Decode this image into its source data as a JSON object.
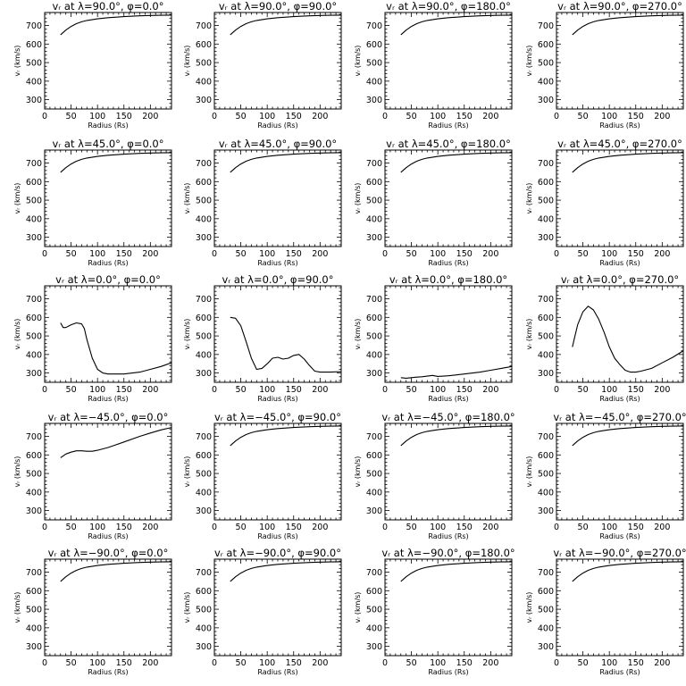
{
  "figure": {
    "background": "#ffffff",
    "line_color": "#000000"
  },
  "chart_data": [
    {
      "type": "line",
      "title": "vᵣ at λ=90.0°, φ=0.0°",
      "xlabel": "Radius (Rs)",
      "ylabel": "vᵣ (km/s)",
      "xlim": [
        0,
        240
      ],
      "ylim": [
        250,
        770
      ],
      "xticks": [
        0,
        50,
        100,
        150,
        200
      ],
      "yticks": [
        300,
        400,
        500,
        600,
        700
      ],
      "x": [
        30,
        40,
        50,
        60,
        70,
        80,
        100,
        120,
        150,
        180,
        200,
        220,
        240
      ],
      "y": [
        650,
        675,
        695,
        710,
        720,
        727,
        736,
        742,
        748,
        752,
        754,
        755,
        756
      ]
    },
    {
      "type": "line",
      "title": "vᵣ at λ=90.0°, φ=90.0°",
      "xlabel": "Radius (Rs)",
      "ylabel": "vᵣ (km/s)",
      "xlim": [
        0,
        240
      ],
      "ylim": [
        250,
        770
      ],
      "xticks": [
        0,
        50,
        100,
        150,
        200
      ],
      "yticks": [
        300,
        400,
        500,
        600,
        700
      ],
      "x": [
        30,
        40,
        50,
        60,
        70,
        80,
        100,
        120,
        150,
        180,
        200,
        220,
        240
      ],
      "y": [
        650,
        675,
        695,
        710,
        720,
        727,
        736,
        742,
        748,
        752,
        754,
        755,
        756
      ]
    },
    {
      "type": "line",
      "title": "vᵣ at λ=90.0°, φ=180.0°",
      "xlabel": "Radius (Rs)",
      "ylabel": "vᵣ (km/s)",
      "xlim": [
        0,
        240
      ],
      "ylim": [
        250,
        770
      ],
      "xticks": [
        0,
        50,
        100,
        150,
        200
      ],
      "yticks": [
        300,
        400,
        500,
        600,
        700
      ],
      "x": [
        30,
        40,
        50,
        60,
        70,
        80,
        100,
        120,
        150,
        180,
        200,
        220,
        240
      ],
      "y": [
        650,
        675,
        695,
        710,
        720,
        727,
        736,
        742,
        748,
        752,
        754,
        755,
        756
      ]
    },
    {
      "type": "line",
      "title": "vᵣ at λ=90.0°, φ=270.0°",
      "xlabel": "Radius (Rs)",
      "ylabel": "vᵣ (km/s)",
      "xlim": [
        0,
        240
      ],
      "ylim": [
        250,
        770
      ],
      "xticks": [
        0,
        50,
        100,
        150,
        200
      ],
      "yticks": [
        300,
        400,
        500,
        600,
        700
      ],
      "x": [
        30,
        40,
        50,
        60,
        70,
        80,
        100,
        120,
        150,
        180,
        200,
        220,
        240
      ],
      "y": [
        650,
        675,
        695,
        710,
        720,
        727,
        736,
        742,
        748,
        752,
        754,
        755,
        756
      ]
    },
    {
      "type": "line",
      "title": "vᵣ at λ=45.0°, φ=0.0°",
      "xlabel": "Radius (Rs)",
      "ylabel": "vᵣ (km/s)",
      "xlim": [
        0,
        240
      ],
      "ylim": [
        250,
        770
      ],
      "xticks": [
        0,
        50,
        100,
        150,
        200
      ],
      "yticks": [
        300,
        400,
        500,
        600,
        700
      ],
      "x": [
        30,
        40,
        50,
        60,
        70,
        80,
        100,
        120,
        150,
        180,
        200,
        220,
        240
      ],
      "y": [
        650,
        675,
        695,
        710,
        720,
        727,
        736,
        742,
        748,
        752,
        754,
        755,
        756
      ]
    },
    {
      "type": "line",
      "title": "vᵣ at λ=45.0°, φ=90.0°",
      "xlabel": "Radius (Rs)",
      "ylabel": "vᵣ (km/s)",
      "xlim": [
        0,
        240
      ],
      "ylim": [
        250,
        770
      ],
      "xticks": [
        0,
        50,
        100,
        150,
        200
      ],
      "yticks": [
        300,
        400,
        500,
        600,
        700
      ],
      "x": [
        30,
        40,
        50,
        60,
        70,
        80,
        100,
        120,
        150,
        180,
        200,
        220,
        240
      ],
      "y": [
        650,
        675,
        695,
        710,
        720,
        727,
        736,
        742,
        748,
        752,
        754,
        755,
        756
      ]
    },
    {
      "type": "line",
      "title": "vᵣ at λ=45.0°, φ=180.0°",
      "xlabel": "Radius (Rs)",
      "ylabel": "vᵣ (km/s)",
      "xlim": [
        0,
        240
      ],
      "ylim": [
        250,
        770
      ],
      "xticks": [
        0,
        50,
        100,
        150,
        200
      ],
      "yticks": [
        300,
        400,
        500,
        600,
        700
      ],
      "x": [
        30,
        40,
        50,
        60,
        70,
        80,
        100,
        120,
        150,
        180,
        200,
        220,
        240
      ],
      "y": [
        650,
        675,
        695,
        710,
        720,
        727,
        736,
        742,
        748,
        752,
        754,
        755,
        756
      ]
    },
    {
      "type": "line",
      "title": "vᵣ at λ=45.0°, φ=270.0°",
      "xlabel": "Radius (Rs)",
      "ylabel": "vᵣ (km/s)",
      "xlim": [
        0,
        240
      ],
      "ylim": [
        250,
        770
      ],
      "xticks": [
        0,
        50,
        100,
        150,
        200
      ],
      "yticks": [
        300,
        400,
        500,
        600,
        700
      ],
      "x": [
        30,
        40,
        50,
        60,
        70,
        80,
        100,
        120,
        150,
        180,
        200,
        220,
        240
      ],
      "y": [
        650,
        675,
        695,
        710,
        720,
        727,
        736,
        742,
        748,
        752,
        754,
        755,
        756
      ]
    },
    {
      "type": "line",
      "title": "vᵣ at λ=0.0°, φ=0.0°",
      "xlabel": "Radius (Rs)",
      "ylabel": "vᵣ (km/s)",
      "xlim": [
        0,
        240
      ],
      "ylim": [
        250,
        770
      ],
      "xticks": [
        0,
        50,
        100,
        150,
        200
      ],
      "yticks": [
        300,
        400,
        500,
        600,
        700
      ],
      "x": [
        30,
        35,
        40,
        50,
        60,
        70,
        75,
        80,
        90,
        100,
        110,
        120,
        150,
        180,
        200,
        220,
        240
      ],
      "y": [
        570,
        545,
        545,
        560,
        570,
        565,
        540,
        480,
        380,
        320,
        300,
        295,
        295,
        305,
        320,
        335,
        355
      ]
    },
    {
      "type": "line",
      "title": "vᵣ at λ=0.0°, φ=90.0°",
      "xlabel": "Radius (Rs)",
      "ylabel": "vᵣ (km/s)",
      "xlim": [
        0,
        240
      ],
      "ylim": [
        250,
        770
      ],
      "xticks": [
        0,
        50,
        100,
        150,
        200
      ],
      "yticks": [
        300,
        400,
        500,
        600,
        700
      ],
      "x": [
        30,
        40,
        50,
        60,
        70,
        80,
        90,
        100,
        110,
        120,
        130,
        140,
        150,
        160,
        170,
        180,
        190,
        200,
        220,
        240
      ],
      "y": [
        600,
        595,
        555,
        470,
        380,
        320,
        325,
        350,
        380,
        385,
        375,
        380,
        395,
        400,
        375,
        340,
        310,
        305,
        305,
        308
      ]
    },
    {
      "type": "line",
      "title": "vᵣ at λ=0.0°, φ=180.0°",
      "xlabel": "Radius (Rs)",
      "ylabel": "vᵣ (km/s)",
      "xlim": [
        0,
        240
      ],
      "ylim": [
        250,
        770
      ],
      "xticks": [
        0,
        50,
        100,
        150,
        200
      ],
      "yticks": [
        300,
        400,
        500,
        600,
        700
      ],
      "x": [
        30,
        40,
        50,
        60,
        70,
        80,
        90,
        100,
        110,
        120,
        150,
        180,
        200,
        220,
        240
      ],
      "y": [
        275,
        272,
        275,
        278,
        280,
        283,
        287,
        282,
        283,
        285,
        295,
        305,
        315,
        325,
        335
      ]
    },
    {
      "type": "line",
      "title": "vᵣ at λ=0.0°, φ=270.0°",
      "xlabel": "Radius (Rs)",
      "ylabel": "vᵣ (km/s)",
      "xlim": [
        0,
        240
      ],
      "ylim": [
        250,
        770
      ],
      "xticks": [
        0,
        50,
        100,
        150,
        200
      ],
      "yticks": [
        300,
        400,
        500,
        600,
        700
      ],
      "x": [
        30,
        35,
        40,
        50,
        60,
        70,
        80,
        90,
        100,
        110,
        120,
        130,
        140,
        150,
        160,
        180,
        200,
        220,
        240
      ],
      "y": [
        440,
        500,
        560,
        630,
        660,
        640,
        590,
        520,
        440,
        380,
        345,
        315,
        305,
        305,
        310,
        325,
        355,
        385,
        420
      ]
    },
    {
      "type": "line",
      "title": "vᵣ at λ=−45.0°, φ=0.0°",
      "xlabel": "Radius (Rs)",
      "ylabel": "vᵣ (km/s)",
      "xlim": [
        0,
        240
      ],
      "ylim": [
        250,
        770
      ],
      "xticks": [
        0,
        50,
        100,
        150,
        200
      ],
      "yticks": [
        300,
        400,
        500,
        600,
        700
      ],
      "x": [
        30,
        40,
        50,
        60,
        70,
        80,
        90,
        100,
        120,
        150,
        180,
        200,
        220,
        240
      ],
      "y": [
        585,
        605,
        615,
        622,
        622,
        620,
        620,
        625,
        640,
        670,
        700,
        718,
        735,
        748
      ]
    },
    {
      "type": "line",
      "title": "vᵣ at λ=−45.0°, φ=90.0°",
      "xlabel": "Radius (Rs)",
      "ylabel": "vᵣ (km/s)",
      "xlim": [
        0,
        240
      ],
      "ylim": [
        250,
        770
      ],
      "xticks": [
        0,
        50,
        100,
        150,
        200
      ],
      "yticks": [
        300,
        400,
        500,
        600,
        700
      ],
      "x": [
        30,
        40,
        50,
        60,
        70,
        80,
        100,
        120,
        150,
        180,
        200,
        220,
        240
      ],
      "y": [
        650,
        675,
        695,
        710,
        720,
        727,
        736,
        742,
        748,
        752,
        754,
        755,
        756
      ]
    },
    {
      "type": "line",
      "title": "vᵣ at λ=−45.0°, φ=180.0°",
      "xlabel": "Radius (Rs)",
      "ylabel": "vᵣ (km/s)",
      "xlim": [
        0,
        240
      ],
      "ylim": [
        250,
        770
      ],
      "xticks": [
        0,
        50,
        100,
        150,
        200
      ],
      "yticks": [
        300,
        400,
        500,
        600,
        700
      ],
      "x": [
        30,
        40,
        50,
        60,
        70,
        80,
        100,
        120,
        150,
        180,
        200,
        220,
        240
      ],
      "y": [
        650,
        675,
        695,
        710,
        720,
        727,
        736,
        742,
        748,
        752,
        754,
        755,
        756
      ]
    },
    {
      "type": "line",
      "title": "vᵣ at λ=−45.0°, φ=270.0°",
      "xlabel": "Radius (Rs)",
      "ylabel": "vᵣ (km/s)",
      "xlim": [
        0,
        240
      ],
      "ylim": [
        250,
        770
      ],
      "xticks": [
        0,
        50,
        100,
        150,
        200
      ],
      "yticks": [
        300,
        400,
        500,
        600,
        700
      ],
      "x": [
        30,
        40,
        50,
        60,
        70,
        80,
        100,
        120,
        150,
        180,
        200,
        220,
        240
      ],
      "y": [
        650,
        675,
        695,
        710,
        720,
        727,
        736,
        742,
        748,
        752,
        754,
        755,
        756
      ]
    },
    {
      "type": "line",
      "title": "vᵣ at λ=−90.0°, φ=0.0°",
      "xlabel": "Radius (Rs)",
      "ylabel": "vᵣ (km/s)",
      "xlim": [
        0,
        240
      ],
      "ylim": [
        250,
        770
      ],
      "xticks": [
        0,
        50,
        100,
        150,
        200
      ],
      "yticks": [
        300,
        400,
        500,
        600,
        700
      ],
      "x": [
        30,
        40,
        50,
        60,
        70,
        80,
        100,
        120,
        150,
        180,
        200,
        220,
        240
      ],
      "y": [
        650,
        675,
        695,
        710,
        720,
        727,
        736,
        742,
        748,
        752,
        754,
        755,
        756
      ]
    },
    {
      "type": "line",
      "title": "vᵣ at λ=−90.0°, φ=90.0°",
      "xlabel": "Radius (Rs)",
      "ylabel": "vᵣ (km/s)",
      "xlim": [
        0,
        240
      ],
      "ylim": [
        250,
        770
      ],
      "xticks": [
        0,
        50,
        100,
        150,
        200
      ],
      "yticks": [
        300,
        400,
        500,
        600,
        700
      ],
      "x": [
        30,
        40,
        50,
        60,
        70,
        80,
        100,
        120,
        150,
        180,
        200,
        220,
        240
      ],
      "y": [
        650,
        675,
        695,
        710,
        720,
        727,
        736,
        742,
        748,
        752,
        754,
        755,
        756
      ]
    },
    {
      "type": "line",
      "title": "vᵣ at λ=−90.0°, φ=180.0°",
      "xlabel": "Radius (Rs)",
      "ylabel": "vᵣ (km/s)",
      "xlim": [
        0,
        240
      ],
      "ylim": [
        250,
        770
      ],
      "xticks": [
        0,
        50,
        100,
        150,
        200
      ],
      "yticks": [
        300,
        400,
        500,
        600,
        700
      ],
      "x": [
        30,
        40,
        50,
        60,
        70,
        80,
        100,
        120,
        150,
        180,
        200,
        220,
        240
      ],
      "y": [
        650,
        675,
        695,
        710,
        720,
        727,
        736,
        742,
        748,
        752,
        754,
        755,
        756
      ]
    },
    {
      "type": "line",
      "title": "vᵣ at λ=−90.0°, φ=270.0°",
      "xlabel": "Radius (Rs)",
      "ylabel": "vᵣ (km/s)",
      "xlim": [
        0,
        240
      ],
      "ylim": [
        250,
        770
      ],
      "xticks": [
        0,
        50,
        100,
        150,
        200
      ],
      "yticks": [
        300,
        400,
        500,
        600,
        700
      ],
      "x": [
        30,
        40,
        50,
        60,
        70,
        80,
        100,
        120,
        150,
        180,
        200,
        220,
        240
      ],
      "y": [
        650,
        675,
        695,
        710,
        720,
        727,
        736,
        742,
        748,
        752,
        754,
        755,
        756
      ]
    }
  ]
}
